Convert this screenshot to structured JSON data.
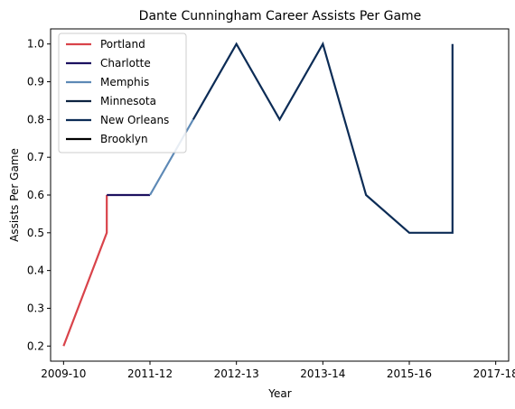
{
  "chart_data": {
    "type": "line",
    "title": "Dante Cunningham Career Assists Per Game",
    "xlabel": "Year",
    "ylabel": "Assists Per Game",
    "x_tick_labels": [
      "2009-10",
      "2011-12",
      "2012-13",
      "2013-14",
      "2015-16",
      "2017-18"
    ],
    "y_tick_labels": [
      "0.2",
      "0.3",
      "0.4",
      "0.5",
      "0.6",
      "0.7",
      "0.8",
      "0.9",
      "1.0"
    ],
    "ylim": [
      0.16,
      1.04
    ],
    "xlim": [
      -0.3,
      10.3
    ],
    "grid": false,
    "legend_position": "top-left",
    "series": [
      {
        "name": "Portland",
        "color": "#d9434a",
        "x": [
          0,
          1,
          1
        ],
        "y": [
          0.2,
          0.5,
          0.6
        ]
      },
      {
        "name": "Charlotte",
        "color": "#1d1160",
        "x": [
          1,
          2
        ],
        "y": [
          0.6,
          0.6
        ]
      },
      {
        "name": "Memphis",
        "color": "#5d89b6",
        "x": [
          2,
          3
        ],
        "y": [
          0.6,
          0.8
        ]
      },
      {
        "name": "Minnesota",
        "color": "#0c2340",
        "x": [
          3
        ],
        "y": [
          0.8
        ]
      },
      {
        "name": "New Orleans",
        "color": "#0c2c56",
        "x": [
          3,
          4,
          5,
          6,
          7,
          8,
          9,
          9
        ],
        "y": [
          0.8,
          1.0,
          0.8,
          1.0,
          0.6,
          0.5,
          0.5,
          1.0
        ]
      },
      {
        "name": "Brooklyn",
        "color": "#000000",
        "x": [],
        "y": []
      }
    ]
  }
}
